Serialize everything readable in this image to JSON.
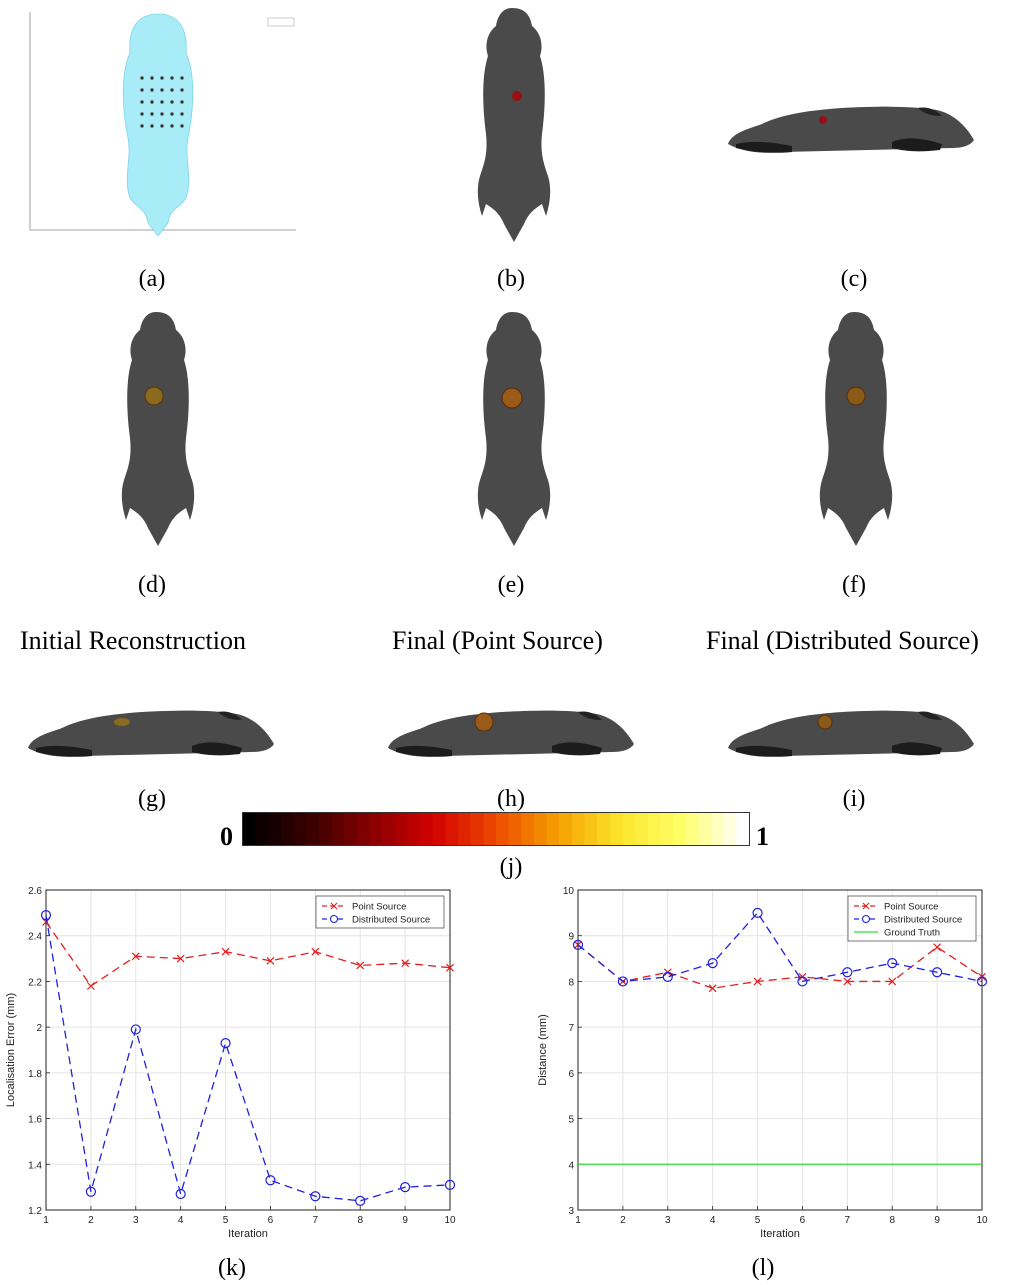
{
  "captions": {
    "a": "(a)",
    "b": "(b)",
    "c": "(c)",
    "d": "(d)",
    "e": "(e)",
    "f": "(f)",
    "g": "(g)",
    "h": "(h)",
    "i": "(i)",
    "j": "(j)",
    "k": "(k)",
    "l": "(l)"
  },
  "column_headers": {
    "initial": "Initial Reconstruction",
    "point": "Final (Point Source)",
    "distributed": "Final (Distributed Source)"
  },
  "colors": {
    "mouse_body": "#4a4a4a",
    "mouse_shadow": "#2a2a2a",
    "mesh": "#a8ecf7",
    "tumor": "#8a5a1c",
    "point_series": "#e02020",
    "distributed_series": "#2020e0",
    "ground_truth": "#33dd33"
  },
  "colorbar": {
    "min_label": "0",
    "max_label": "1",
    "stops": [
      "#000000",
      "#3a0000",
      "#8a0000",
      "#d40000",
      "#ec4a00",
      "#f5a000",
      "#fbe52a",
      "#ffff66",
      "#ffffff"
    ]
  },
  "chart_data": [
    {
      "id": "k",
      "type": "line",
      "x": [
        1,
        2,
        3,
        4,
        5,
        6,
        7,
        8,
        9,
        10
      ],
      "xlabel": "Iteration",
      "ylabel": "Localisation Error (mm)",
      "xlim": [
        1,
        10
      ],
      "ylim": [
        1.2,
        2.6
      ],
      "yticks": [
        1.2,
        1.4,
        1.6,
        1.8,
        2,
        2.2,
        2.4,
        2.6
      ],
      "xticks": [
        1,
        2,
        3,
        4,
        5,
        6,
        7,
        8,
        9,
        10
      ],
      "grid": true,
      "legend_position": "top-right",
      "series": [
        {
          "name": "Point Source",
          "marker": "x",
          "color": "#e02020",
          "values": [
            2.46,
            2.18,
            2.31,
            2.3,
            2.33,
            2.29,
            2.33,
            2.27,
            2.28,
            2.26
          ]
        },
        {
          "name": "Distributed Source",
          "marker": "o",
          "color": "#2020e0",
          "values": [
            2.49,
            1.28,
            1.99,
            1.27,
            1.93,
            1.33,
            1.26,
            1.24,
            1.3,
            1.31
          ]
        }
      ]
    },
    {
      "id": "l",
      "type": "line",
      "x": [
        1,
        2,
        3,
        4,
        5,
        6,
        7,
        8,
        9,
        10
      ],
      "xlabel": "Iteration",
      "ylabel": "Distance (mm)",
      "xlim": [
        1,
        10
      ],
      "ylim": [
        3,
        10
      ],
      "yticks": [
        3,
        4,
        5,
        6,
        7,
        8,
        9,
        10
      ],
      "xticks": [
        1,
        2,
        3,
        4,
        5,
        6,
        7,
        8,
        9,
        10
      ],
      "grid": true,
      "legend_position": "top-right",
      "series": [
        {
          "name": "Point Source",
          "marker": "x",
          "color": "#e02020",
          "values": [
            8.8,
            8.0,
            8.2,
            7.85,
            8.0,
            8.1,
            8.0,
            8.0,
            8.75,
            8.1
          ]
        },
        {
          "name": "Distributed Source",
          "marker": "o",
          "color": "#2020e0",
          "values": [
            8.8,
            8.0,
            8.1,
            8.4,
            9.5,
            8.0,
            8.2,
            8.4,
            8.2,
            8.0
          ]
        },
        {
          "name": "Ground Truth",
          "marker": "none",
          "color": "#33dd33",
          "values": [
            4,
            4,
            4,
            4,
            4,
            4,
            4,
            4,
            4,
            4
          ]
        }
      ]
    }
  ]
}
